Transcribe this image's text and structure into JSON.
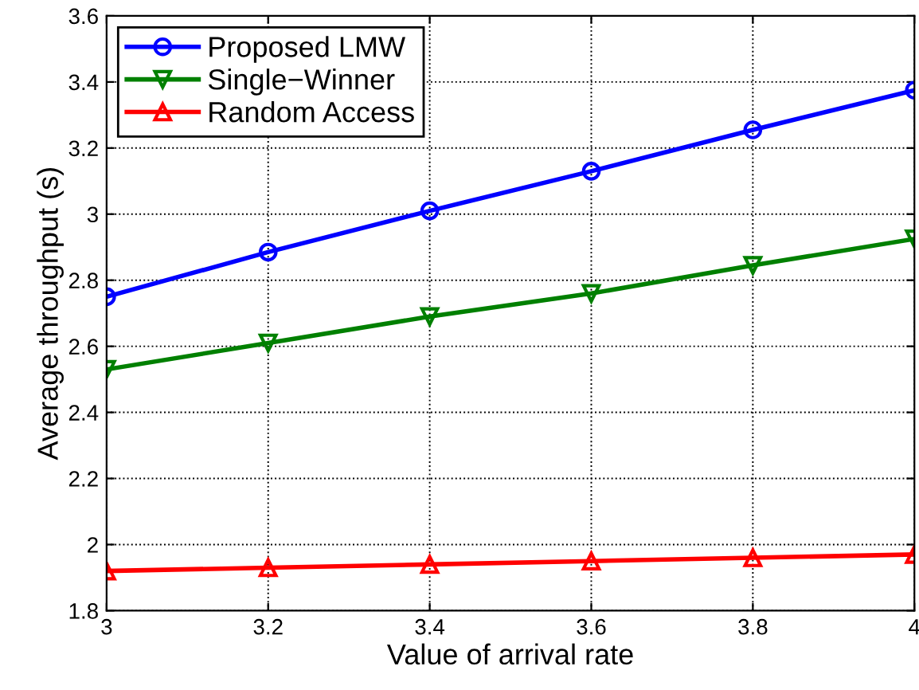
{
  "chart_data": {
    "type": "line",
    "xlabel": "Value of arrival rate",
    "ylabel": "Average throughput (s)",
    "x": [
      3,
      3.2,
      3.4,
      3.6,
      3.8,
      4
    ],
    "series": [
      {
        "name": "Proposed LMW",
        "color": "#0000ff",
        "marker": "circle",
        "values": [
          2.75,
          2.885,
          3.01,
          3.13,
          3.255,
          3.375
        ]
      },
      {
        "name": "Single−Winner",
        "color": "#008000",
        "marker": "triangle_down",
        "values": [
          2.53,
          2.61,
          2.69,
          2.76,
          2.845,
          2.925
        ]
      },
      {
        "name": "Random Access",
        "color": "#ff0000",
        "marker": "triangle",
        "values": [
          1.92,
          1.93,
          1.94,
          1.95,
          1.96,
          1.97
        ]
      }
    ],
    "xlim": [
      3,
      4
    ],
    "xticks": [
      3,
      3.2,
      3.4,
      3.6,
      3.8,
      4
    ],
    "ylim": [
      1.8,
      3.6
    ],
    "yticks": [
      1.8,
      2,
      2.2,
      2.4,
      2.6,
      2.8,
      3,
      3.2,
      3.4,
      3.6
    ],
    "grid": true,
    "legend": "top left",
    "line_style": "solid"
  }
}
